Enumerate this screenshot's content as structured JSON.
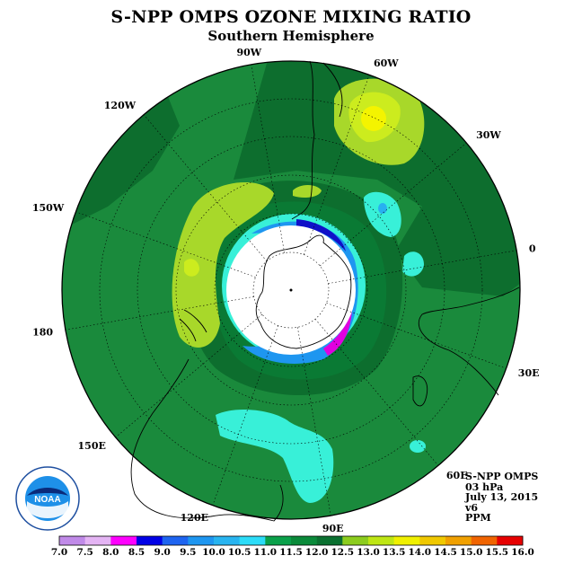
{
  "title": "S-NPP OMPS OZONE MIXING RATIO",
  "subtitle": "Southern Hemisphere",
  "longitude_labels": [
    "90W",
    "60W",
    "30W",
    "0",
    "30E",
    "60E",
    "90E",
    "120E",
    "150E",
    "180",
    "150W",
    "120W"
  ],
  "info": {
    "instrument": "S-NPP OMPS",
    "level": "03 hPa",
    "date": "July 13, 2015",
    "version": "v6",
    "units": "PPM"
  },
  "logo": {
    "text": "NOAA",
    "ring_text": "NATIONAL OCEANIC AND ATMOSPHERIC ADMINISTRATION · U.S. DEPARTMENT OF COMMERCE",
    "icon": "noaa-logo"
  },
  "colorbar": {
    "ticks": [
      "7.0",
      "7.5",
      "8.0",
      "8.5",
      "9.0",
      "9.5",
      "10.0",
      "10.5",
      "11.0",
      "11.5",
      "12.0",
      "12.5",
      "13.0",
      "13.5",
      "14.0",
      "14.5",
      "15.0",
      "15.5",
      "16.0"
    ],
    "colors": [
      "#c08ae8",
      "#e4b4f4",
      "#ff00ff",
      "#0000e6",
      "#1e64f0",
      "#1e96f0",
      "#28b4f0",
      "#2cdcf8",
      "#0aa04a",
      "#0a8a3a",
      "#0a7030",
      "#8ccc1e",
      "#bee614",
      "#f0f000",
      "#f0c800",
      "#f0a000",
      "#f06400",
      "#e60000",
      "#8c5a3c"
    ]
  },
  "map_colors": {
    "ocean_green": "#1a8a3c",
    "dark_green": "#0d6e2e",
    "light_green": "#2aaa4a",
    "lime": "#a8d82a",
    "yellow_lime": "#ccec1e",
    "yellow": "#f4f400",
    "cyan": "#38f0d8",
    "light_blue": "#28b0f0",
    "blue": "#1e64f0",
    "navy": "#1010c8",
    "magenta": "#e000e0",
    "polar_hole": "#ffffff"
  }
}
